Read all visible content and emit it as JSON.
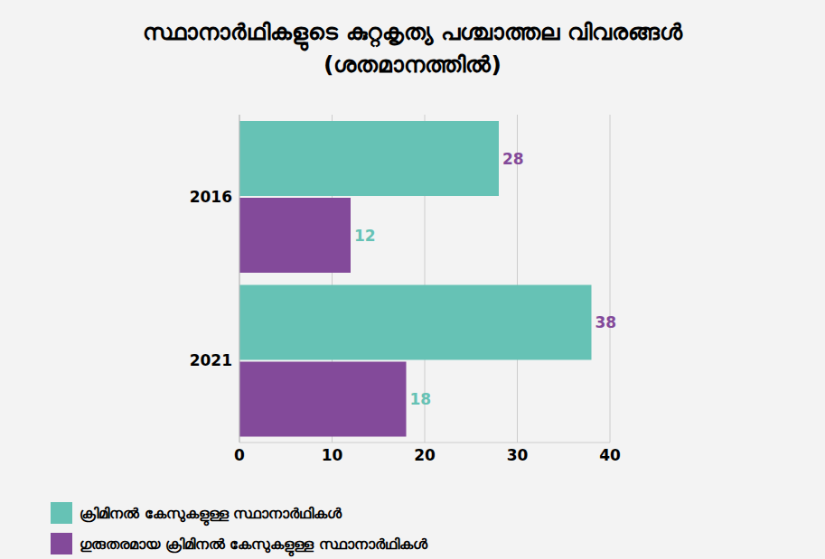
{
  "chart_data": {
    "type": "bar",
    "title": "സ്ഥാനാർഥികളുടെ കുറ്റകൃത്യ പശ്ചാത്തല വിവരങ്ങൾ",
    "subtitle": "(ശതമാനത്തിൽ)",
    "orientation": "horizontal",
    "categories": [
      "2016",
      "2021"
    ],
    "series": [
      {
        "name": "ക്രിമിനൽ കേസുകളുള്ള സ്ഥാനാർഥികൾ",
        "color": "#66c2b5",
        "values": [
          28,
          38
        ]
      },
      {
        "name": "ഗുരുതരമായ ക്രിമിനൽ കേസുകളുള്ള സ്ഥാനാർഥികൾ",
        "color": "#834a9a",
        "values": [
          12,
          18
        ]
      }
    ],
    "xlim": [
      0,
      40
    ],
    "xticks": [
      0,
      10,
      20,
      30,
      40
    ],
    "grid": true,
    "data_labels": true,
    "legend": "bottom left"
  }
}
